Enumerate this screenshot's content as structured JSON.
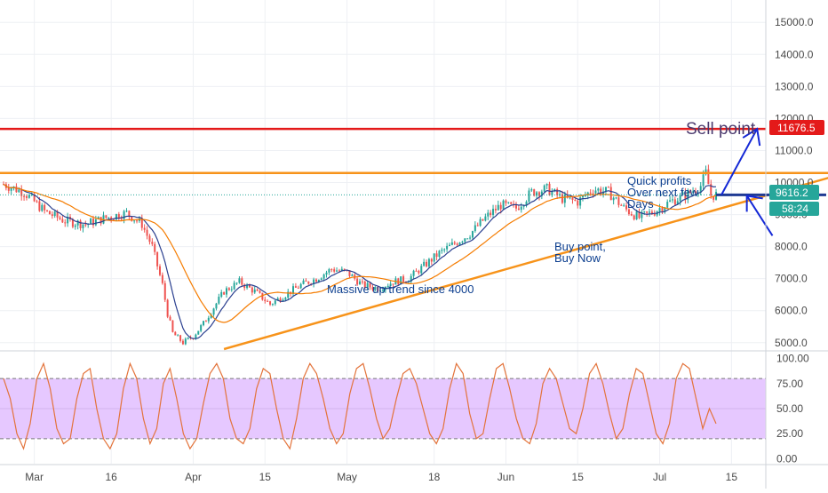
{
  "colors": {
    "grid": "#eef0f4",
    "axis_text": "#4a4a4a",
    "up_candle": "#26a69a",
    "down_candle": "#ef5350",
    "ma_fast": "#2a3f8f",
    "ma_slow": "#f57c00",
    "trend_line": "#f7931a",
    "sell_line": "#e41a1a",
    "annotation_text": "#0d3f8f",
    "sell_text": "#4b3a6e",
    "price_tag": "#26a69a",
    "stoch_fill": "#e6c8ff",
    "stoch_line": "#e3733b"
  },
  "annotations": {
    "sell_point": "Sell point",
    "quick_profits_1": "Quick profits",
    "quick_profits_2": "Over next few",
    "quick_profits_3": "Days",
    "buy_point_1": "Buy point,",
    "buy_point_2": "Buy Now",
    "trend": "Massive up trend since 4000"
  },
  "price_tags": {
    "sell_price": "11676.5",
    "last_price": "9616.2",
    "countdown": "58:24"
  },
  "chart_data": [
    {
      "type": "candlestick",
      "title": "",
      "ylim": [
        4800,
        15700
      ],
      "y_ticks": [
        "5000.0",
        "6000.0",
        "7000.0",
        "8000.0",
        "9000.0",
        "10000.0",
        "11000.0",
        "12000.0",
        "13000.0",
        "14000.0",
        "15000.0"
      ],
      "x_ticks": [
        "Mar",
        "16",
        "Apr",
        "15",
        "May",
        "18",
        "Jun",
        "15",
        "Jul",
        "15"
      ],
      "ma_periods_note": "",
      "close_path": [
        [
          0,
          9950
        ],
        [
          4,
          9700
        ],
        [
          8,
          9100
        ],
        [
          12,
          8800
        ],
        [
          16,
          8700
        ],
        [
          20,
          8900
        ],
        [
          24,
          9050
        ],
        [
          27,
          8700
        ],
        [
          29,
          8000
        ],
        [
          31,
          6800
        ],
        [
          32,
          5900
        ],
        [
          33,
          5300
        ],
        [
          35,
          5000
        ],
        [
          37,
          5200
        ],
        [
          39,
          5600
        ],
        [
          41,
          6100
        ],
        [
          43,
          6600
        ],
        [
          46,
          6900
        ],
        [
          49,
          6600
        ],
        [
          52,
          6200
        ],
        [
          55,
          6500
        ],
        [
          58,
          6800
        ],
        [
          61,
          7000
        ],
        [
          64,
          7300
        ],
        [
          67,
          7200
        ],
        [
          70,
          6800
        ],
        [
          73,
          6700
        ],
        [
          76,
          6900
        ],
        [
          79,
          7000
        ],
        [
          82,
          7400
        ],
        [
          85,
          7800
        ],
        [
          88,
          8100
        ],
        [
          91,
          8400
        ],
        [
          94,
          8900
        ],
        [
          97,
          9300
        ],
        [
          100,
          9200
        ],
        [
          103,
          9700
        ],
        [
          106,
          9800
        ],
        [
          109,
          9500
        ],
        [
          112,
          9400
        ],
        [
          115,
          9800
        ],
        [
          118,
          9700
        ],
        [
          121,
          9200
        ],
        [
          124,
          8900
        ],
        [
          127,
          9100
        ],
        [
          130,
          9400
        ],
        [
          133,
          9600
        ],
        [
          136,
          9900
        ],
        [
          137,
          10300
        ],
        [
          138,
          9600
        ],
        [
          139,
          9616
        ]
      ],
      "series": [
        {
          "name": "",
          "kind": "ma_fast"
        },
        {
          "name": "",
          "kind": "ma_slow"
        }
      ],
      "drawings": {
        "resistance_level": 10300,
        "resistance_span_days": [
          0,
          161
        ],
        "sell_level": 11676.5,
        "last_price": 9616.2,
        "trend_line": {
          "from": [
            43,
            4800
          ],
          "to": [
            161,
            10150
          ]
        },
        "buy_level_span_days": [
          139,
          161
        ],
        "buy_level": 9616.2
      }
    },
    {
      "type": "line",
      "title": "",
      "ylim": [
        -5,
        105
      ],
      "y_ticks": [
        "0.00",
        "25.00",
        "50.00",
        "75.00",
        "100.00"
      ],
      "bands": [
        20,
        80
      ],
      "values": [
        80,
        60,
        25,
        10,
        35,
        80,
        95,
        70,
        30,
        15,
        20,
        60,
        85,
        90,
        50,
        20,
        10,
        25,
        70,
        95,
        80,
        40,
        15,
        30,
        75,
        90,
        60,
        25,
        10,
        20,
        55,
        85,
        95,
        80,
        40,
        20,
        15,
        30,
        70,
        90,
        85,
        50,
        20,
        10,
        40,
        80,
        95,
        85,
        60,
        30,
        15,
        25,
        65,
        90,
        95,
        70,
        40,
        20,
        30,
        60,
        85,
        90,
        75,
        50,
        25,
        15,
        30,
        70,
        95,
        85,
        45,
        20,
        25,
        60,
        90,
        95,
        70,
        40,
        20,
        15,
        35,
        75,
        90,
        80,
        55,
        30,
        25,
        50,
        85,
        95,
        75,
        45,
        20,
        30,
        65,
        90,
        85,
        55,
        25,
        15,
        35,
        80,
        95,
        90,
        60,
        30,
        50,
        35
      ]
    }
  ]
}
